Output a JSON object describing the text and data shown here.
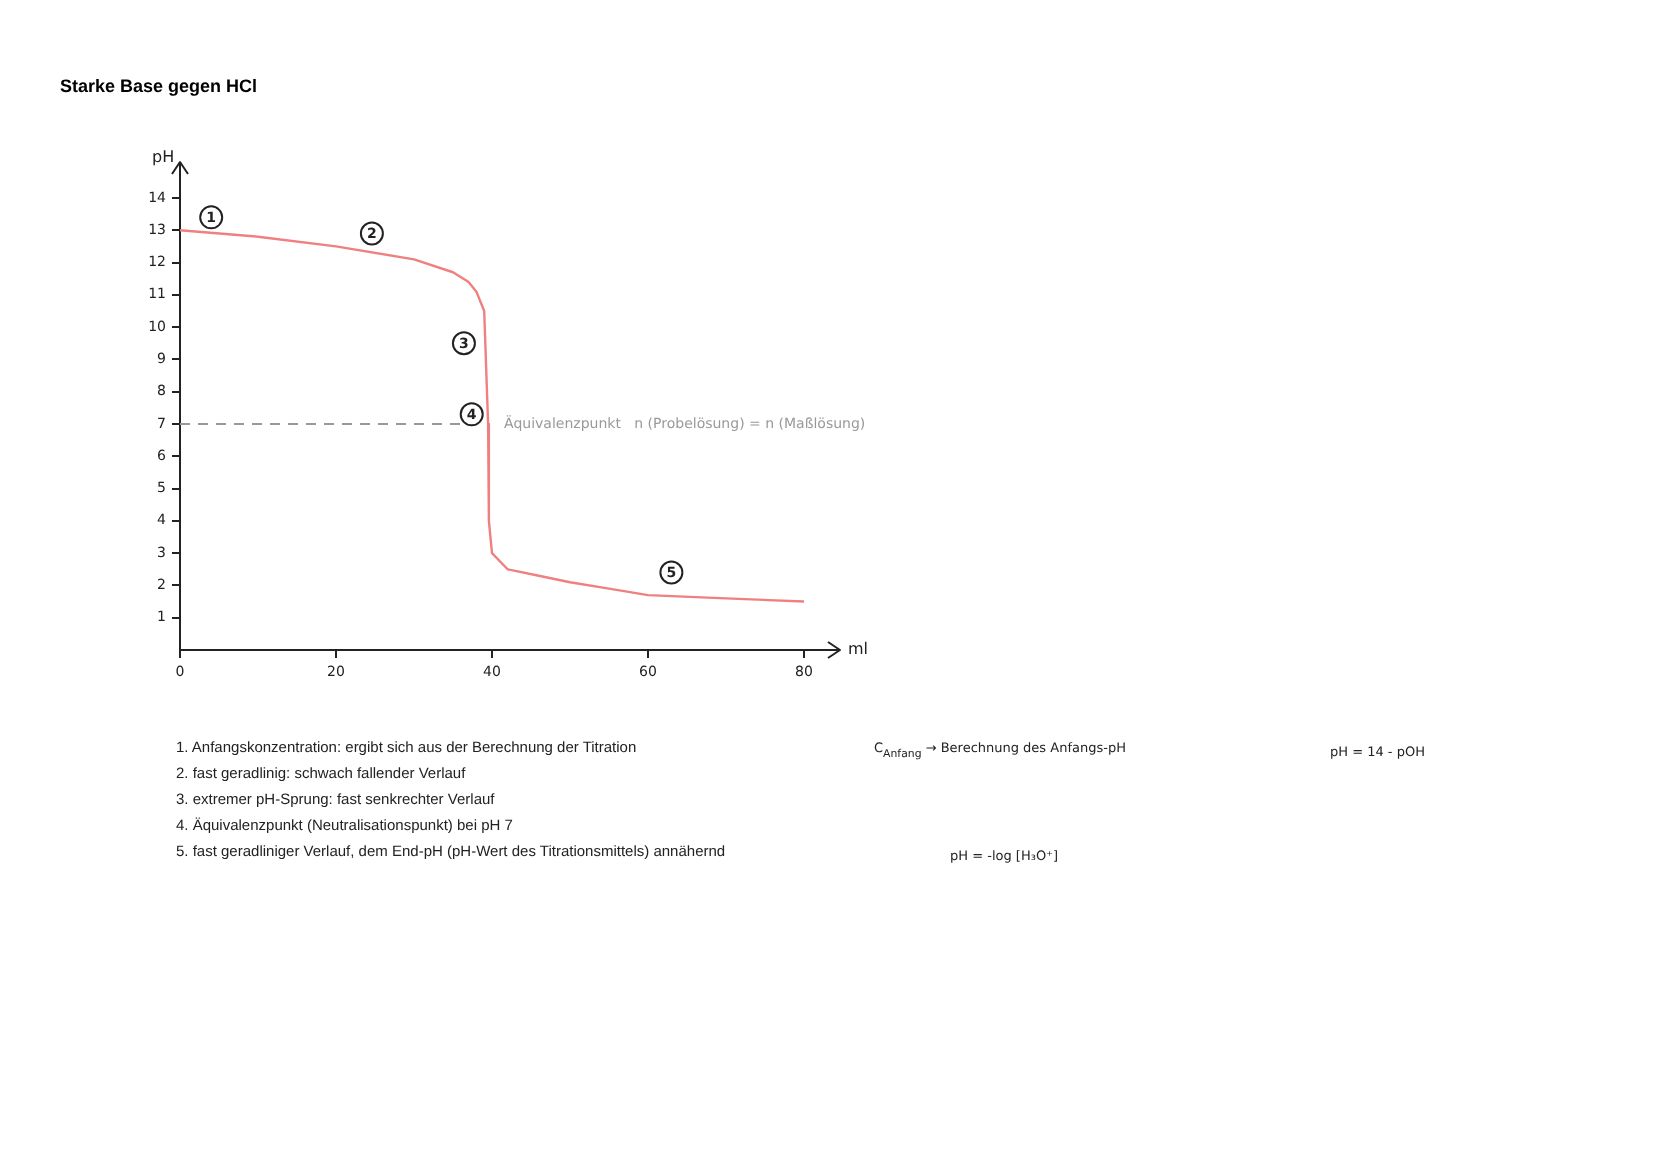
{
  "chart_data": {
    "type": "line",
    "title": "Starke Base gegen HCl",
    "xlabel": "ml",
    "ylabel": "pH",
    "x": [
      0,
      10,
      20,
      30,
      35,
      37,
      38,
      39,
      39.5,
      39.6,
      40,
      42,
      46,
      50,
      55,
      60,
      70,
      80
    ],
    "series": [
      {
        "color": "#f08080",
        "values": [
          13,
          12.8,
          12.5,
          12.1,
          11.7,
          11.4,
          11.1,
          10.5,
          7,
          4,
          3,
          2.5,
          2.3,
          2.1,
          1.9,
          1.7,
          1.6,
          1.5
        ]
      }
    ],
    "xlim": [
      0,
      80
    ],
    "ylim": [
      0,
      14
    ],
    "xticks": [
      0,
      20,
      40,
      60,
      80
    ],
    "yticks": [
      1,
      2,
      3,
      4,
      5,
      6,
      7,
      8,
      9,
      10,
      11,
      12,
      13,
      14
    ],
    "grid": false,
    "legend": false,
    "marker": "none",
    "line_style": "solid",
    "ref_lines": [
      {
        "axis": "y",
        "value": 7,
        "label": "Äquivalenzpunkt   n (Probelösung) = n (Maßlösung)",
        "color": "#999999",
        "line_style": "dashed"
      }
    ],
    "annotations": [
      {
        "text": "1",
        "x": 4,
        "y": 13.4
      },
      {
        "text": "2",
        "x": 24.6,
        "y": 12.9
      },
      {
        "text": "3",
        "x": 36.4,
        "y": 9.5
      },
      {
        "text": "4",
        "x": 37.4,
        "y": 7.3
      },
      {
        "text": "5",
        "x": 63,
        "y": 2.4
      },
      "1.   Anfangskonzentration: ergibt sich aus der Berechnung der Titration",
      "2.   fast geradlinig: schwach fallender Verlauf",
      "3.   extremer pH-Sprung: fast senkrechter Verlauf",
      "4.   Äquivalenzpunkt (Neutralisationspunkt) bei pH 7",
      "5.   fast geradliniger Verlauf, dem End-pH (pH-Wert des Titrationsmittels) annähernd",
      "C$_{Anfang}$ → Berechnung des Anfangs-pH",
      "pH = 14 - pOH",
      "pH = -log [H₃O⁺]"
    ]
  }
}
